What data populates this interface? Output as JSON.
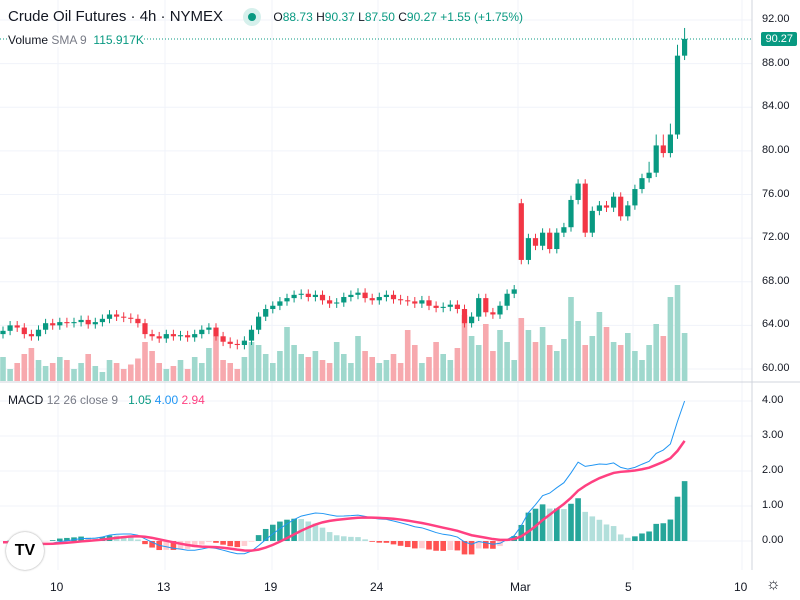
{
  "header": {
    "title": "Crude Oil Futures · 4h · NYMEX",
    "o_label": "O",
    "o": "88.73",
    "h_label": "H",
    "h": "90.37",
    "l_label": "L",
    "l": "87.50",
    "c_label": "C",
    "c": "90.27",
    "change": "+1.55 (+1.75%)"
  },
  "volume_legend": {
    "name": "Volume",
    "params": "SMA 9",
    "value": "115.917K"
  },
  "macd_legend": {
    "name": "MACD",
    "params": "12 26 close 9",
    "hist": "1.05",
    "macd": "4.00",
    "signal": "2.94"
  },
  "last_price": "90.27",
  "price_axis": [
    "92.00",
    "88.00",
    "84.00",
    "80.00",
    "76.00",
    "72.00",
    "68.00",
    "64.00",
    "60.00"
  ],
  "macd_axis": [
    "4.00",
    "3.00",
    "2.00",
    "1.00",
    "0.00"
  ],
  "time_axis": [
    "10",
    "13",
    "19",
    "24",
    "Mar",
    "5",
    "10"
  ],
  "colors": {
    "up": "#089981",
    "down": "#f23645",
    "macd": "#2196f3",
    "signal": "#ff4081"
  },
  "chart_data": {
    "type": "candlestick",
    "closes": [
      63.5,
      64,
      63.8,
      63.2,
      63.0,
      63.6,
      64.2,
      64.0,
      64.3,
      64.2,
      64.3,
      64.5,
      64.1,
      64.3,
      64.6,
      65.0,
      64.8,
      64.7,
      64.6,
      64.2,
      63.2,
      63.0,
      62.8,
      63.2,
      63.0,
      63.1,
      62.9,
      63.2,
      63.6,
      63.8,
      63.0,
      62.5,
      62.3,
      62.2,
      62.6,
      63.6,
      64.8,
      65.5,
      65.8,
      66.2,
      66.5,
      66.8,
      66.9,
      66.6,
      66.8,
      66.3,
      66.0,
      66.1,
      66.6,
      66.8,
      67.0,
      66.5,
      66.3,
      66.6,
      66.8,
      66.4,
      66.3,
      66.2,
      66.0,
      66.3,
      65.8,
      65.6,
      65.7,
      65.9,
      65.5,
      64.2,
      64.8,
      66.5,
      65.2,
      65.0,
      65.8,
      66.9,
      67.3,
      70.0,
      72.0,
      71.3,
      72.5,
      71.0,
      72.5,
      73.0,
      75.5,
      77.0,
      72.5,
      74.5,
      75.0,
      74.8,
      75.8,
      74.0,
      75.0,
      76.5,
      77.5,
      78.0,
      80.5,
      79.8,
      81.5,
      88.73,
      90.27
    ],
    "volumes_k": [
      80,
      40,
      60,
      90,
      110,
      70,
      50,
      60,
      80,
      70,
      40,
      60,
      90,
      50,
      30,
      70,
      60,
      40,
      55,
      75,
      130,
      100,
      60,
      40,
      50,
      70,
      40,
      80,
      60,
      110,
      150,
      70,
      60,
      40,
      80,
      130,
      120,
      90,
      60,
      100,
      180,
      120,
      90,
      80,
      100,
      70,
      60,
      130,
      90,
      60,
      150,
      100,
      80,
      60,
      70,
      90,
      60,
      170,
      120,
      60,
      80,
      130,
      90,
      70,
      110,
      220,
      150,
      120,
      190,
      100,
      170,
      130,
      70,
      210,
      170,
      130,
      180,
      120,
      100,
      140,
      280,
      200,
      120,
      150,
      230,
      180,
      130,
      120,
      160,
      100,
      70,
      120,
      190,
      150,
      280,
      320,
      160
    ],
    "ylim": [
      60,
      92
    ]
  }
}
